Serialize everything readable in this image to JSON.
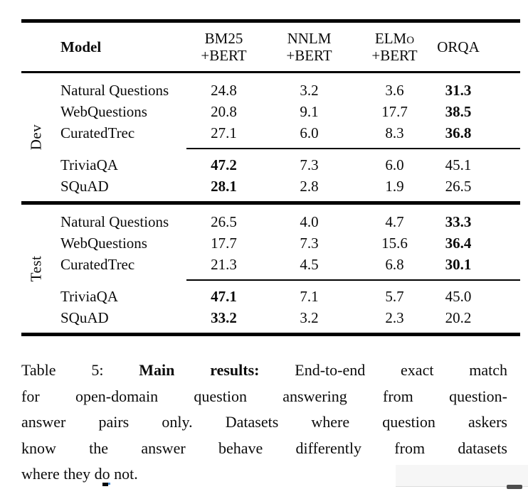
{
  "table": {
    "header": {
      "model": "Model",
      "cols": [
        {
          "line1": "BM25",
          "line2": "+BERT"
        },
        {
          "line1": "NNLM",
          "line2": "+BERT"
        },
        {
          "line1": "ELMo",
          "line2": "+BERT"
        },
        {
          "line1": "ORQA"
        }
      ]
    },
    "sections": [
      {
        "label": "Dev",
        "groups": [
          {
            "rows": [
              {
                "dataset": "Natural Questions",
                "cells": [
                  {
                    "v": "24.8"
                  },
                  {
                    "v": "3.2"
                  },
                  {
                    "v": "3.6"
                  },
                  {
                    "v": "31.3",
                    "bold": true
                  }
                ]
              },
              {
                "dataset": "WebQuestions",
                "cells": [
                  {
                    "v": "20.8"
                  },
                  {
                    "v": "9.1"
                  },
                  {
                    "v": "17.7"
                  },
                  {
                    "v": "38.5",
                    "bold": true
                  }
                ]
              },
              {
                "dataset": "CuratedTrec",
                "cells": [
                  {
                    "v": "27.1"
                  },
                  {
                    "v": "6.0"
                  },
                  {
                    "v": "8.3"
                  },
                  {
                    "v": "36.8",
                    "bold": true
                  }
                ]
              }
            ]
          },
          {
            "rows": [
              {
                "dataset": "TriviaQA",
                "cells": [
                  {
                    "v": "47.2",
                    "bold": true
                  },
                  {
                    "v": "7.3"
                  },
                  {
                    "v": "6.0"
                  },
                  {
                    "v": "45.1"
                  }
                ]
              },
              {
                "dataset": "SQuAD",
                "cells": [
                  {
                    "v": "28.1",
                    "bold": true
                  },
                  {
                    "v": "2.8"
                  },
                  {
                    "v": "1.9"
                  },
                  {
                    "v": "26.5"
                  }
                ]
              }
            ]
          }
        ]
      },
      {
        "label": "Test",
        "groups": [
          {
            "rows": [
              {
                "dataset": "Natural Questions",
                "cells": [
                  {
                    "v": "26.5"
                  },
                  {
                    "v": "4.0"
                  },
                  {
                    "v": "4.7"
                  },
                  {
                    "v": "33.3",
                    "bold": true
                  }
                ]
              },
              {
                "dataset": "WebQuestions",
                "cells": [
                  {
                    "v": "17.7"
                  },
                  {
                    "v": "7.3"
                  },
                  {
                    "v": "15.6"
                  },
                  {
                    "v": "36.4",
                    "bold": true
                  }
                ]
              },
              {
                "dataset": "CuratedTrec",
                "cells": [
                  {
                    "v": "21.3"
                  },
                  {
                    "v": "4.5"
                  },
                  {
                    "v": "6.8"
                  },
                  {
                    "v": "30.1",
                    "bold": true
                  }
                ]
              }
            ]
          },
          {
            "rows": [
              {
                "dataset": "TriviaQA",
                "cells": [
                  {
                    "v": "47.1",
                    "bold": true
                  },
                  {
                    "v": "7.1"
                  },
                  {
                    "v": "5.7"
                  },
                  {
                    "v": "45.0"
                  }
                ]
              },
              {
                "dataset": "SQuAD",
                "cells": [
                  {
                    "v": "33.2",
                    "bold": true
                  },
                  {
                    "v": "3.2"
                  },
                  {
                    "v": "2.3"
                  },
                  {
                    "v": "20.2"
                  }
                ]
              }
            ]
          }
        ]
      }
    ]
  },
  "caption": {
    "line1_prefix": "Table 5:",
    "line1_bold": "Main results:",
    "line1_rest": "End-to-end exact match",
    "line2": "for open-domain question answering from question-",
    "line3": "answer pairs only. Datasets where question askers",
    "line4": "know the answer behave differently from datasets",
    "line5": "where they do not."
  }
}
